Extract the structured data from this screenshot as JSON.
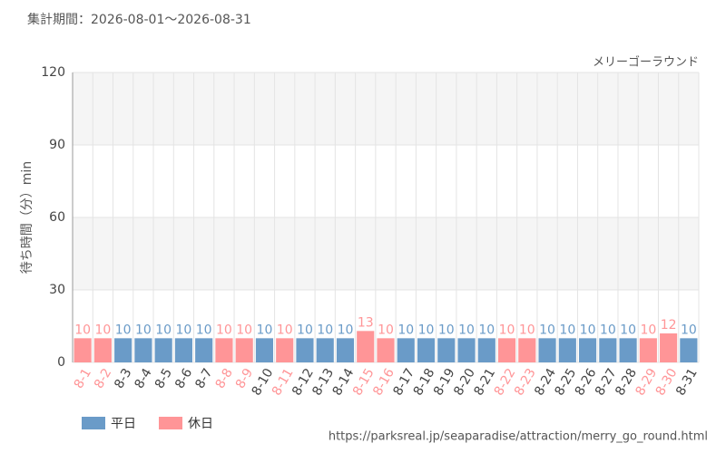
{
  "header": "集計期間：2026-08-01～2026-08-31",
  "footer": "https://parksreal.jp/seaparadise/attraction/merry_go_round.html",
  "chart_data": {
    "type": "bar",
    "subtitle": "メリーゴーラウンド",
    "y_label": "待ち時間（分）min",
    "categories": [
      "8-1",
      "8-2",
      "8-3",
      "8-4",
      "8-5",
      "8-6",
      "8-7",
      "8-8",
      "8-9",
      "8-10",
      "8-11",
      "8-12",
      "8-13",
      "8-14",
      "8-15",
      "8-16",
      "8-17",
      "8-18",
      "8-19",
      "8-20",
      "8-21",
      "8-22",
      "8-23",
      "8-24",
      "8-25",
      "8-26",
      "8-27",
      "8-28",
      "8-29",
      "8-30",
      "8-31"
    ],
    "series": [
      {
        "name": "平日",
        "color": "#6a9bc8",
        "values": [
          null,
          null,
          10,
          10,
          10,
          10,
          10,
          null,
          null,
          10,
          null,
          10,
          10,
          10,
          null,
          null,
          10,
          10,
          10,
          10,
          10,
          null,
          null,
          10,
          10,
          10,
          10,
          10,
          null,
          null,
          10
        ]
      },
      {
        "name": "休日",
        "color": "#ff9597",
        "values": [
          10,
          10,
          null,
          null,
          null,
          null,
          null,
          10,
          10,
          null,
          10,
          null,
          null,
          null,
          13,
          10,
          null,
          null,
          null,
          null,
          null,
          10,
          10,
          null,
          null,
          null,
          null,
          null,
          10,
          12,
          null
        ]
      }
    ],
    "ylim": [
      0,
      120
    ],
    "yticks": [
      0,
      30,
      60,
      90,
      120
    ],
    "grid": true
  }
}
